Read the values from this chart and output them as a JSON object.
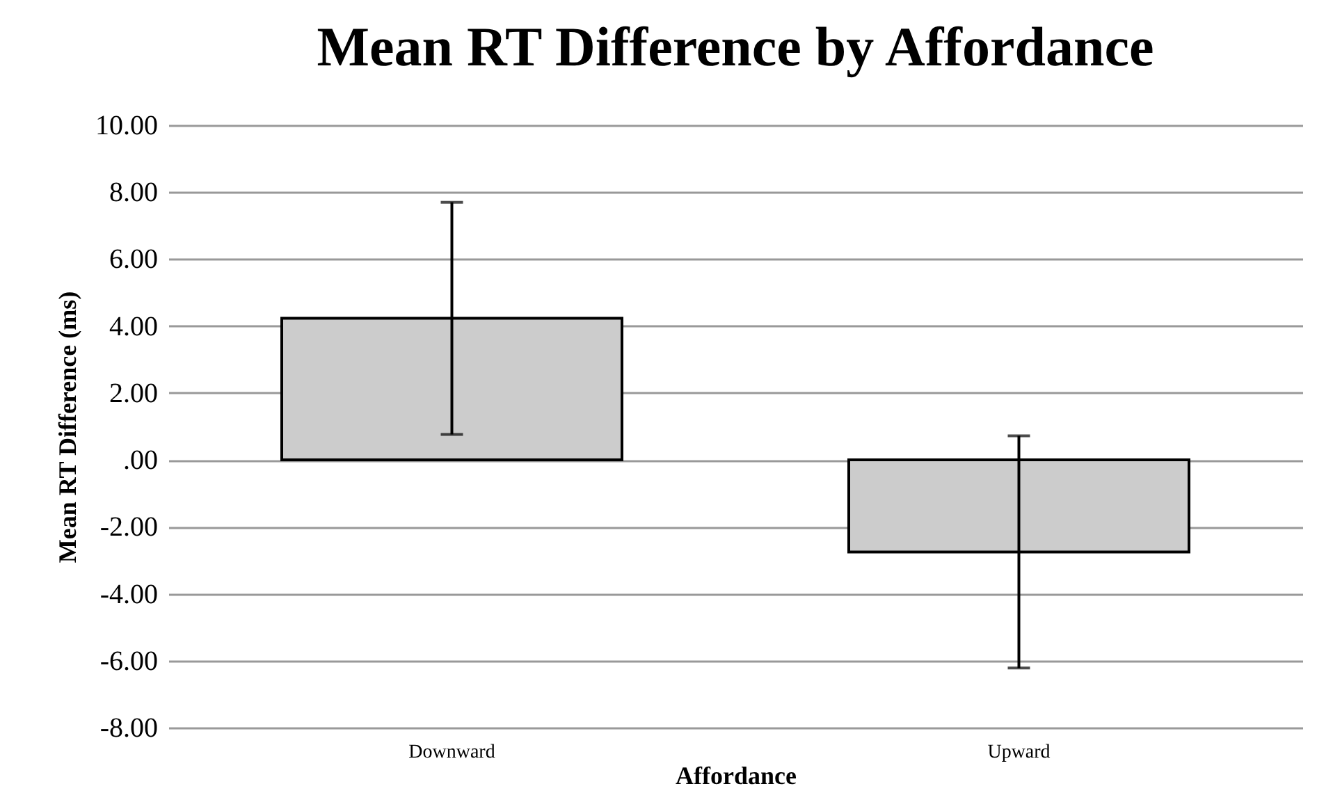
{
  "chart_data": {
    "type": "bar",
    "title": "Mean RT Difference by Affordance",
    "xlabel": "Affordance",
    "ylabel": "Mean RT Difference (ms)",
    "categories": [
      "Downward",
      "Upward"
    ],
    "series": [
      {
        "color": "#cccccc",
        "values": [
          4.23,
          -2.75
        ],
        "errors": [
          3.47,
          3.47
        ]
      }
    ],
    "ylim": [
      -8,
      10
    ],
    "yticks": [
      {
        "value": -8,
        "label": "-8.00"
      },
      {
        "value": -6,
        "label": "-6.00"
      },
      {
        "value": -4,
        "label": "-4.00"
      },
      {
        "value": -2,
        "label": "-2.00"
      },
      {
        "value": 0,
        "label": ".00"
      },
      {
        "value": 2,
        "label": "2.00"
      },
      {
        "value": 4,
        "label": "4.00"
      },
      {
        "value": 6,
        "label": "6.00"
      },
      {
        "value": 8,
        "label": "8.00"
      },
      {
        "value": 10,
        "label": "10.00"
      }
    ],
    "grid": "y"
  }
}
